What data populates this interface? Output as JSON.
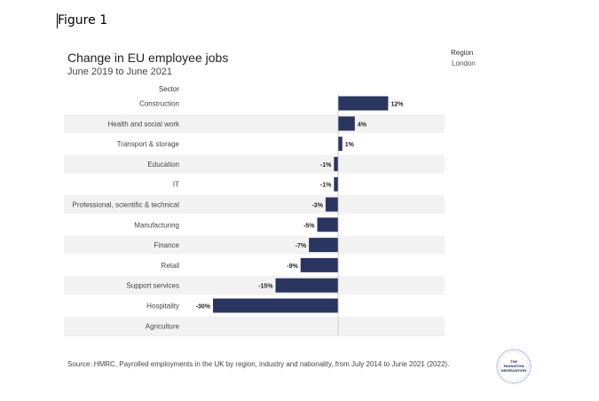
{
  "figure_label": "Figure 1",
  "chart_data": {
    "type": "bar",
    "orientation": "horizontal",
    "title": "Change in EU employee jobs",
    "subtitle": "June 2019 to June 2021",
    "category_axis_label": "Sector",
    "categories": [
      "Construction",
      "Health and social work",
      "Transport & storage",
      "Education",
      "IT",
      "Professional, scientific & technical",
      "Manufacturing",
      "Finance",
      "Retail",
      "Support services",
      "Hospitality",
      "Agriculture"
    ],
    "values": [
      12,
      4,
      1,
      -1,
      -1,
      -3,
      -5,
      -7,
      -9,
      -15,
      -30,
      null
    ],
    "data_labels": [
      "12%",
      "4%",
      "1%",
      "-1%",
      "-1%",
      "-3%",
      "-5%",
      "-7%",
      "-9%",
      "-15%",
      "-30%",
      ""
    ],
    "unit": "%",
    "xlim": [
      -30,
      18.5
    ],
    "bar_color": "#2a3560",
    "band_color": "#f2f2f2"
  },
  "filter": {
    "label": "Region",
    "value": "London"
  },
  "source": "Source: HMRC, Payrolled employments in the UK by region, industry and nationality, from July 2014 to June 2021 (2022).",
  "logo": {
    "line1": "THE",
    "line2": "MIGRATION",
    "line3": "OBSERVATORY"
  }
}
